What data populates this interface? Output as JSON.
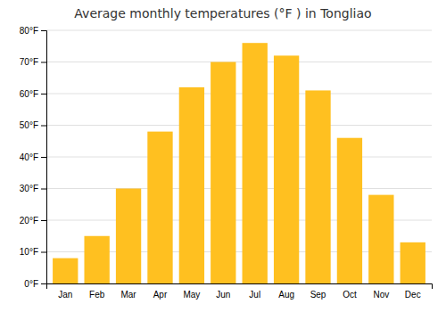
{
  "chart_data": {
    "type": "bar",
    "title": "Average monthly temperatures (°F ) in Tongliao",
    "categories": [
      "Jan",
      "Feb",
      "Mar",
      "Apr",
      "May",
      "Jun",
      "Jul",
      "Aug",
      "Sep",
      "Oct",
      "Nov",
      "Dec"
    ],
    "values": [
      8,
      15,
      30,
      48,
      62,
      70,
      76,
      72,
      61,
      46,
      28,
      13
    ],
    "color": "#FFC020",
    "ylim": [
      0,
      80
    ],
    "yticks": [
      {
        "value": 0,
        "label": "0°F"
      },
      {
        "value": 10,
        "label": "10°F"
      },
      {
        "value": 20,
        "label": "20°F"
      },
      {
        "value": 30,
        "label": "30°F"
      },
      {
        "value": 40,
        "label": "40°F"
      },
      {
        "value": 50,
        "label": "50°F"
      },
      {
        "value": 60,
        "label": "60°F"
      },
      {
        "value": 70,
        "label": "70°F"
      },
      {
        "value": 80,
        "label": "80°F"
      }
    ],
    "grid": true
  }
}
